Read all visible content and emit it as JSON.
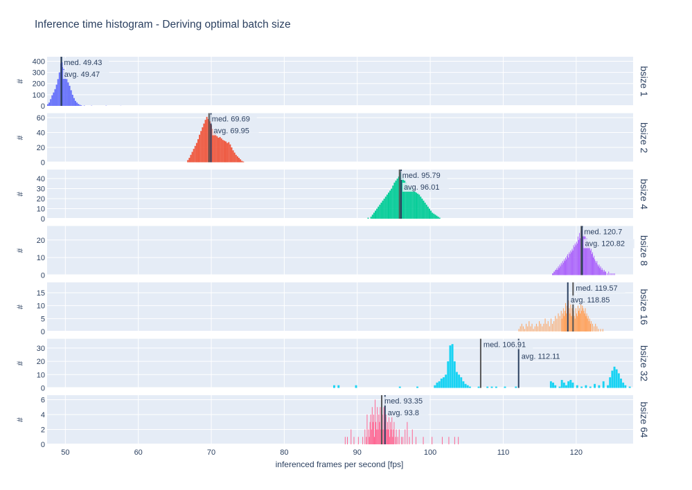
{
  "chart_data": {
    "type": "bar",
    "title": "Inference time histogram - Deriving optimal batch size",
    "xlabel": "inferenced frames per second [fps]",
    "ylabel": "#",
    "xlim": [
      47.5,
      127.8
    ],
    "x_ticks": [
      50,
      60,
      70,
      80,
      90,
      100,
      110,
      120
    ],
    "x_tick_labels": [
      "50",
      "60",
      "70",
      "80",
      "90",
      "100",
      "110",
      "120"
    ],
    "style": {
      "plot_bg": "#E5ECF6",
      "grid": "#ffffff",
      "text": "#2a3f5f",
      "median_line": "#555555",
      "average_line": "#2a3f5f"
    },
    "panels": [
      {
        "name": "bsize 1",
        "color": "#636EFA",
        "ylim": [
          0,
          440
        ],
        "y_ticks": [
          0,
          100,
          200,
          300,
          400
        ],
        "y_tick_labels": [
          "0",
          "100",
          "200",
          "300",
          "400"
        ],
        "median": 49.43,
        "median_label": "med. 49.43",
        "average": 49.47,
        "average_label": "avg. 49.47",
        "bin_width": 0.2,
        "bins_x": [
          47.5,
          47.7,
          47.9,
          48.1,
          48.3,
          48.5,
          48.7,
          48.9,
          49.1,
          49.3,
          49.5,
          49.7,
          49.9,
          50.1,
          50.3,
          50.5,
          50.7,
          50.9,
          51.1,
          51.3,
          51.5,
          51.7,
          51.9,
          52.1,
          52.5,
          53.5,
          55.5,
          57.5
        ],
        "bins_y": [
          15,
          30,
          60,
          95,
          120,
          150,
          190,
          240,
          300,
          380,
          390,
          330,
          280,
          240,
          210,
          180,
          140,
          100,
          70,
          45,
          30,
          18,
          10,
          5,
          3,
          2,
          2,
          1
        ]
      },
      {
        "name": "bsize 2",
        "color": "#EF553B",
        "ylim": [
          0,
          66
        ],
        "y_ticks": [
          0,
          20,
          40,
          60
        ],
        "y_tick_labels": [
          "0",
          "20",
          "40",
          "60"
        ],
        "median": 69.69,
        "median_label": "med. 69.69",
        "average": 69.95,
        "average_label": "avg. 69.95",
        "bin_width": 0.2,
        "bins_x": [
          66.7,
          66.9,
          67.1,
          67.3,
          67.5,
          67.7,
          67.9,
          68.1,
          68.3,
          68.5,
          68.7,
          68.9,
          69.1,
          69.3,
          69.5,
          69.7,
          69.9,
          70.1,
          70.3,
          70.5,
          70.7,
          70.9,
          71.1,
          71.3,
          71.5,
          71.7,
          71.9,
          72.1,
          72.3,
          72.5,
          72.7,
          72.9,
          73.1,
          73.3,
          73.5,
          73.7,
          73.9,
          74.1,
          74.3
        ],
        "bins_y": [
          3,
          6,
          10,
          14,
          18,
          22,
          26,
          31,
          37,
          42,
          47,
          52,
          57,
          61,
          58,
          55,
          50,
          45,
          41,
          38,
          35,
          33,
          34,
          32,
          30,
          29,
          28,
          26,
          27,
          24,
          20,
          16,
          13,
          10,
          8,
          6,
          4,
          2,
          1
        ]
      },
      {
        "name": "bsize 4",
        "color": "#00CC96",
        "ylim": [
          0,
          49
        ],
        "y_ticks": [
          0,
          10,
          20,
          30,
          40
        ],
        "y_tick_labels": [
          "0",
          "10",
          "20",
          "30",
          "40"
        ],
        "median": 95.79,
        "median_label": "med. 95.79",
        "average": 96.01,
        "average_label": "avg. 96.01",
        "bin_width": 0.2,
        "bins_x": [
          91.4,
          91.8,
          92.0,
          92.2,
          92.4,
          92.6,
          92.8,
          93.0,
          93.2,
          93.4,
          93.6,
          93.8,
          94.0,
          94.2,
          94.4,
          94.6,
          94.8,
          95.0,
          95.2,
          95.4,
          95.6,
          95.8,
          96.0,
          96.2,
          96.4,
          96.6,
          96.8,
          97.0,
          97.2,
          97.4,
          97.6,
          97.8,
          98.0,
          98.2,
          98.4,
          98.6,
          98.8,
          99.0,
          99.2,
          99.4,
          99.6,
          99.8,
          100.0,
          100.2,
          100.4,
          100.6,
          100.8,
          101.0,
          101.2
        ],
        "bins_y": [
          1,
          2,
          4,
          6,
          8,
          10,
          12,
          14,
          16,
          18,
          20,
          22,
          24,
          26,
          28,
          30,
          33,
          36,
          38,
          40,
          42,
          46,
          44,
          41,
          38,
          36,
          34,
          32,
          30,
          31,
          29,
          27,
          26,
          25,
          24,
          22,
          20,
          18,
          16,
          14,
          12,
          10,
          8,
          6,
          5,
          4,
          3,
          2,
          1
        ]
      },
      {
        "name": "bsize 8",
        "color": "#AB63FA",
        "ylim": [
          0,
          28
        ],
        "y_ticks": [
          0,
          10,
          20
        ],
        "y_tick_labels": [
          "0",
          "10",
          "20"
        ],
        "median": 120.7,
        "median_label": "med. 120.7",
        "average": 120.82,
        "average_label": "avg. 120.82",
        "bin_width": 0.1,
        "bins_x": [
          116.7,
          116.8,
          116.9,
          117.0,
          117.1,
          117.2,
          117.3,
          117.4,
          117.5,
          117.6,
          117.7,
          117.8,
          117.9,
          118.0,
          118.1,
          118.2,
          118.3,
          118.4,
          118.5,
          118.6,
          118.7,
          118.8,
          118.9,
          119.0,
          119.1,
          119.2,
          119.3,
          119.4,
          119.5,
          119.6,
          119.7,
          119.8,
          119.9,
          120.0,
          120.1,
          120.2,
          120.3,
          120.4,
          120.5,
          120.6,
          120.7,
          120.8,
          120.9,
          121.0,
          121.1,
          121.2,
          121.3,
          121.4,
          121.5,
          121.6,
          121.7,
          121.8,
          121.9,
          122.0,
          122.1,
          122.2,
          122.3,
          122.4,
          122.5,
          122.6,
          122.7,
          122.8,
          122.9,
          123.0,
          123.1,
          123.2,
          123.3,
          123.4,
          123.5,
          123.6,
          123.7,
          123.8,
          123.9,
          124.0,
          124.2,
          124.4,
          124.6,
          124.8,
          125.0,
          125.2
        ],
        "bins_y": [
          1,
          1,
          2,
          2,
          3,
          3,
          4,
          3,
          5,
          4,
          6,
          5,
          7,
          6,
          8,
          7,
          9,
          8,
          10,
          9,
          11,
          12,
          10,
          13,
          12,
          14,
          13,
          15,
          14,
          17,
          16,
          18,
          17,
          19,
          18,
          22,
          20,
          24,
          21,
          25,
          27,
          24,
          26,
          23,
          25,
          22,
          20,
          21,
          18,
          19,
          16,
          17,
          14,
          15,
          12,
          13,
          10,
          11,
          9,
          8,
          7,
          8,
          6,
          5,
          6,
          4,
          5,
          3,
          4,
          3,
          2,
          3,
          2,
          2,
          1,
          2,
          1,
          1,
          1,
          1
        ]
      },
      {
        "name": "bsize 16",
        "color": "#FFA15A",
        "ylim": [
          0,
          19
        ],
        "y_ticks": [
          0,
          5,
          10,
          15
        ],
        "y_tick_labels": [
          "0",
          "5",
          "10",
          "15"
        ],
        "median": 119.57,
        "median_label": "med. 119.57",
        "average": 118.85,
        "average_label": "avg. 118.85",
        "bin_width": 0.1,
        "bins_x": [
          112.1,
          112.3,
          112.5,
          112.7,
          112.9,
          113.1,
          113.3,
          113.5,
          113.7,
          113.9,
          114.1,
          114.3,
          114.5,
          114.7,
          114.9,
          115.1,
          115.3,
          115.5,
          115.7,
          115.9,
          116.1,
          116.3,
          116.5,
          116.7,
          116.9,
          117.1,
          117.3,
          117.5,
          117.7,
          117.9,
          118.0,
          118.1,
          118.2,
          118.3,
          118.4,
          118.5,
          118.6,
          118.7,
          118.8,
          118.9,
          119.0,
          119.1,
          119.2,
          119.3,
          119.4,
          119.5,
          119.6,
          119.7,
          119.8,
          119.9,
          120.0,
          120.1,
          120.2,
          120.3,
          120.4,
          120.5,
          120.6,
          120.7,
          120.8,
          120.9,
          121.0,
          121.1,
          121.2,
          121.3,
          121.4,
          121.5,
          121.6,
          121.7,
          121.8,
          121.9,
          122.0,
          122.2,
          122.4,
          122.6,
          122.8,
          123.0,
          123.3,
          123.6
        ],
        "bins_y": [
          1,
          2,
          3,
          2,
          1,
          3,
          2,
          4,
          2,
          3,
          1,
          2,
          3,
          2,
          4,
          3,
          2,
          3,
          5,
          3,
          4,
          2,
          5,
          3,
          4,
          6,
          5,
          7,
          6,
          8,
          5,
          7,
          9,
          6,
          8,
          11,
          7,
          10,
          8,
          12,
          9,
          7,
          11,
          6,
          9,
          10,
          8,
          6,
          5,
          9,
          7,
          6,
          10,
          8,
          9,
          7,
          11,
          8,
          10,
          9,
          8,
          7,
          9,
          6,
          7,
          5,
          6,
          4,
          5,
          3,
          4,
          3,
          2,
          3,
          2,
          1,
          1,
          1
        ]
      },
      {
        "name": "bsize 32",
        "color": "#19D3F3",
        "ylim": [
          0,
          37
        ],
        "y_ticks": [
          0,
          10,
          20,
          30
        ],
        "y_tick_labels": [
          "0",
          "10",
          "20",
          "30"
        ],
        "median": 106.91,
        "median_label": "med. 106.91",
        "average": 112.11,
        "average_label": "avg. 112.11",
        "bin_width": 0.3,
        "bins_x": [
          86.7,
          87.3,
          89.7,
          95.7,
          98.1,
          100.5,
          100.8,
          101.1,
          101.4,
          101.7,
          102.0,
          102.3,
          102.6,
          102.9,
          103.2,
          103.5,
          103.8,
          104.1,
          104.4,
          104.7,
          105.0,
          105.3,
          106.5,
          107.7,
          108.3,
          108.9,
          110.1,
          111.6,
          116.4,
          116.7,
          117.0,
          117.6,
          117.9,
          118.2,
          118.5,
          118.8,
          119.1,
          119.4,
          120.0,
          120.6,
          121.2,
          121.8,
          122.4,
          123.0,
          123.6,
          124.2,
          124.5,
          124.8,
          125.1,
          125.4,
          125.7,
          126.0,
          126.3,
          126.6,
          127.2
        ],
        "bins_y": [
          2,
          2,
          2,
          1,
          1,
          2,
          4,
          5,
          7,
          8,
          10,
          20,
          32,
          33,
          20,
          12,
          10,
          8,
          5,
          3,
          2,
          1,
          1,
          1,
          1,
          1,
          1,
          1,
          5,
          4,
          2,
          1,
          6,
          4,
          2,
          5,
          6,
          4,
          2,
          1,
          2,
          1,
          3,
          2,
          5,
          2,
          8,
          13,
          16,
          14,
          11,
          7,
          4,
          2,
          1
        ]
      },
      {
        "name": "bsize 64",
        "color": "#FF6692",
        "ylim": [
          0,
          6.6
        ],
        "y_ticks": [
          0,
          2,
          4,
          6
        ],
        "y_tick_labels": [
          "0",
          "2",
          "4",
          "6"
        ],
        "median": 93.35,
        "median_label": "med. 93.35",
        "average": 93.8,
        "average_label": "avg. 93.8",
        "bin_width": 0.1,
        "bins_x": [
          88.3,
          88.6,
          89.1,
          89.5,
          90.1,
          90.7,
          91.0,
          91.2,
          91.3,
          91.5,
          91.6,
          91.7,
          91.8,
          91.9,
          92.0,
          92.1,
          92.2,
          92.3,
          92.4,
          92.5,
          92.6,
          92.7,
          92.8,
          92.9,
          93.0,
          93.1,
          93.2,
          93.3,
          93.4,
          93.5,
          93.6,
          93.7,
          93.8,
          93.9,
          94.0,
          94.1,
          94.2,
          94.3,
          94.4,
          94.5,
          94.6,
          94.7,
          94.8,
          94.9,
          95.0,
          95.2,
          95.3,
          95.5,
          95.7,
          96.0,
          96.2,
          96.5,
          96.8,
          97.1,
          97.5,
          98.0,
          99.0,
          100.2,
          101.6,
          102.5,
          103.3,
          103.8
        ],
        "bins_y": [
          1,
          1,
          2,
          1,
          1,
          1,
          2,
          1,
          4,
          2,
          1,
          3,
          4,
          2,
          5,
          3,
          4,
          1,
          6,
          3,
          2,
          5,
          2,
          4,
          3,
          5,
          2,
          6,
          4,
          2,
          5,
          3,
          2,
          4,
          2,
          3,
          2,
          4,
          1,
          3,
          2,
          4,
          1,
          2,
          3,
          1,
          2,
          1,
          2,
          1,
          1,
          2,
          3,
          1,
          2,
          1,
          1,
          1,
          1,
          1,
          1,
          1
        ]
      }
    ]
  }
}
